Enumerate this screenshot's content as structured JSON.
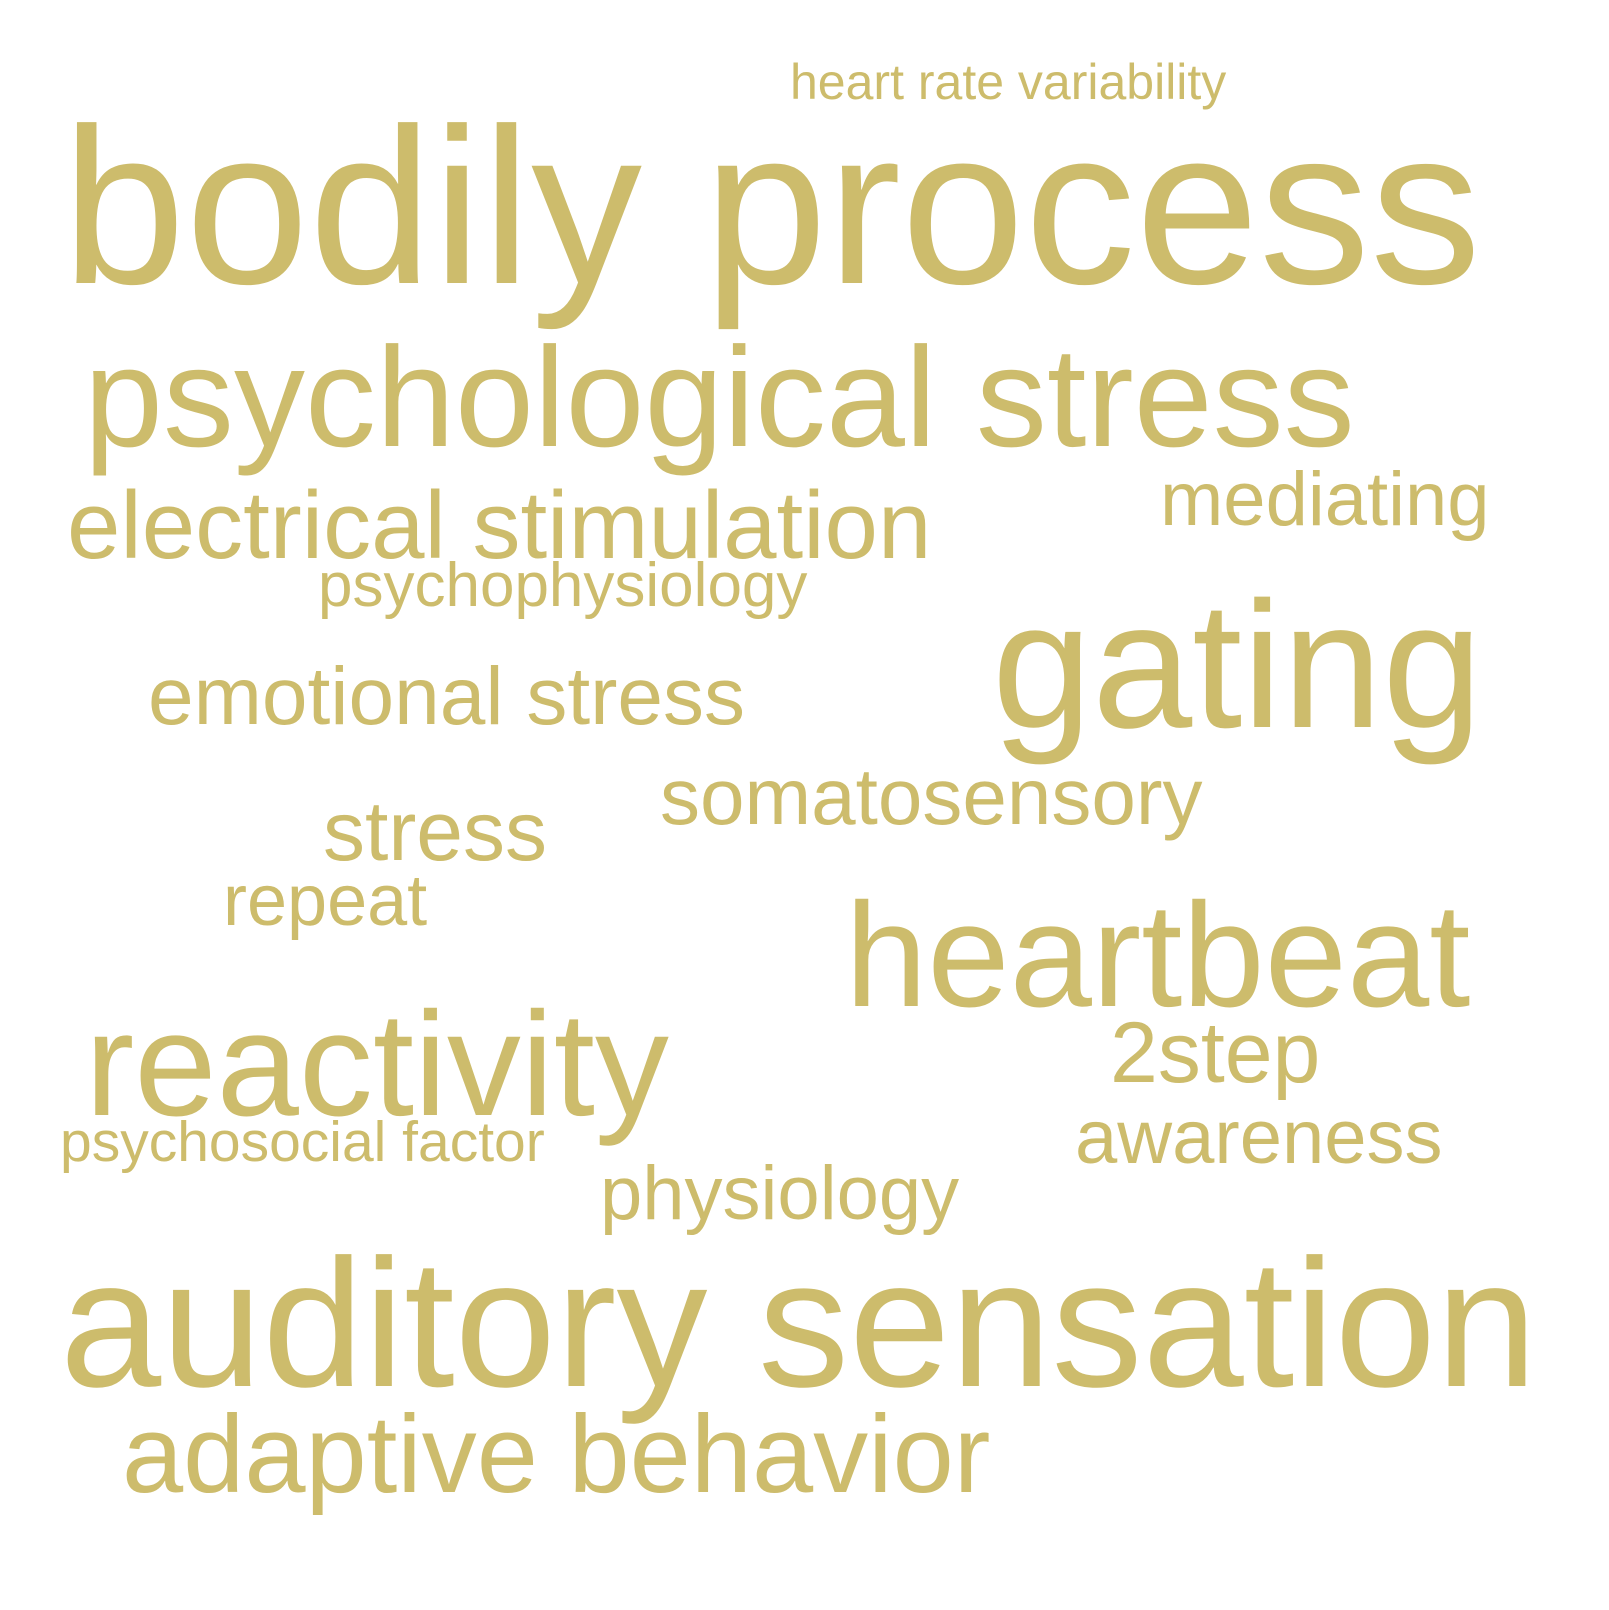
{
  "colors": {
    "background": "#ffffff",
    "word": "#cdbc6c"
  },
  "words": {
    "heart_rate_variability": "heart rate variability",
    "bodily_process": "bodily process",
    "psychological_stress": "psychological stress",
    "electrical_stimulation": "electrical stimulation",
    "mediating": "mediating",
    "psychophysiology": "psychophysiology",
    "gating": "gating",
    "emotional_stress": "emotional stress",
    "somatosensory": "somatosensory",
    "stress": "stress",
    "repeat": "repeat",
    "heartbeat": "heartbeat",
    "reactivity": "reactivity",
    "two_step": "2step",
    "awareness": "awareness",
    "psychosocial_factor": "psychosocial factor",
    "physiology": "physiology",
    "auditory_sensation": "auditory sensation",
    "adaptive_behavior": "adaptive behavior"
  }
}
